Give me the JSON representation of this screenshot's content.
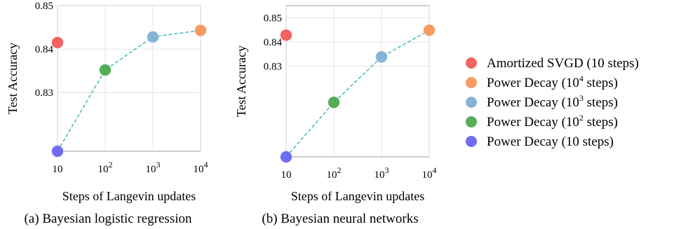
{
  "colors": {
    "amortized": "#f45b5b",
    "power_1e4": "#f7965c",
    "power_1e3": "#7fb0d6",
    "power_1e2": "#4daa4e",
    "power_10": "#6766f0",
    "dashed_line": "#1fb3b3",
    "grid": "#dddddd"
  },
  "legend": {
    "items": [
      {
        "key": "amortized",
        "label": "Amortized SVGD (10 steps)"
      },
      {
        "key": "power_1e4",
        "label_main": "Power Decay (10",
        "label_sup": "4",
        "label_tail": " steps)"
      },
      {
        "key": "power_1e3",
        "label_main": "Power Decay (10",
        "label_sup": "3",
        "label_tail": " steps)"
      },
      {
        "key": "power_1e2",
        "label_main": "Power Decay (10",
        "label_sup": "2",
        "label_tail": " steps)"
      },
      {
        "key": "power_10",
        "label": "Power Decay (10 steps)"
      }
    ]
  },
  "chart_data": [
    {
      "type": "scatter",
      "caption": "(a) Bayesian logistic regression",
      "xlabel": "Steps of Langevin updates",
      "ylabel": "Test Accuracy",
      "x_scale": "log",
      "xlim": [
        10,
        10000
      ],
      "ylim": [
        0.8165,
        0.85
      ],
      "x_ticks": [
        {
          "base": "10",
          "sup": "",
          "value": 10
        },
        {
          "base": "10",
          "sup": "2",
          "value": 100
        },
        {
          "base": "10",
          "sup": "3",
          "value": 1000
        },
        {
          "base": "10",
          "sup": "4",
          "value": 10000
        }
      ],
      "y_ticks": [
        {
          "label": "0.85",
          "value": 0.85
        },
        {
          "label": "0.84",
          "value": 0.84
        },
        {
          "label": "0.83",
          "value": 0.83
        }
      ],
      "grid": true,
      "power_decay_line": {
        "x": [
          10,
          100,
          1000,
          10000
        ],
        "y": [
          0.8165,
          0.8352,
          0.8428,
          0.8443
        ]
      },
      "points": [
        {
          "key": "amortized",
          "x": 10,
          "y": 0.8415
        },
        {
          "key": "power_1e4",
          "x": 10000,
          "y": 0.8443
        },
        {
          "key": "power_1e3",
          "x": 1000,
          "y": 0.8428
        },
        {
          "key": "power_1e2",
          "x": 100,
          "y": 0.8352
        },
        {
          "key": "power_10",
          "x": 10,
          "y": 0.8165
        }
      ]
    },
    {
      "type": "scatter",
      "caption": "(b) Bayesian neural networks",
      "xlabel": "Steps of Langevin updates",
      "ylabel": "Test Accuracy",
      "x_scale": "log",
      "xlim": [
        10,
        10000
      ],
      "ylim": [
        0.7925,
        0.855
      ],
      "x_ticks": [
        {
          "base": "10",
          "sup": "",
          "value": 10
        },
        {
          "base": "10",
          "sup": "2",
          "value": 100
        },
        {
          "base": "10",
          "sup": "3",
          "value": 1000
        },
        {
          "base": "10",
          "sup": "4",
          "value": 10000
        }
      ],
      "y_ticks": [
        {
          "label": "0.85",
          "value": 0.85
        },
        {
          "label": "0.84",
          "value": 0.84
        },
        {
          "label": "0.83",
          "value": 0.83
        }
      ],
      "grid": true,
      "power_decay_line": {
        "x": [
          10,
          100,
          1000,
          10000
        ],
        "y": [
          0.7925,
          0.815,
          0.8338,
          0.8448
        ]
      },
      "points": [
        {
          "key": "amortized",
          "x": 10,
          "y": 0.8428
        },
        {
          "key": "power_1e4",
          "x": 10000,
          "y": 0.8448
        },
        {
          "key": "power_1e3",
          "x": 1000,
          "y": 0.8338
        },
        {
          "key": "power_1e2",
          "x": 100,
          "y": 0.815
        },
        {
          "key": "power_10",
          "x": 10,
          "y": 0.7925
        }
      ]
    }
  ]
}
